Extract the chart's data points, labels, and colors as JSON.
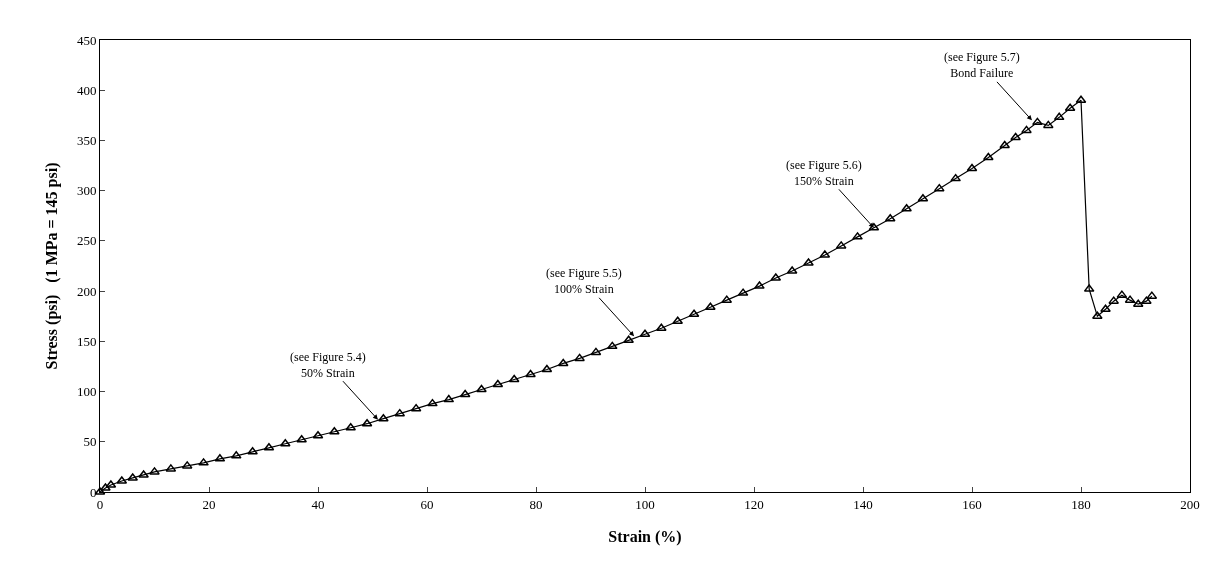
{
  "chart_data": {
    "type": "line",
    "xlabel": "Strain (%)",
    "ylabel": "Stress (psi)   (1 MPa = 145 psi)",
    "xlim": [
      0,
      200
    ],
    "xticks": [
      0,
      20,
      40,
      60,
      80,
      100,
      120,
      140,
      160,
      180,
      200
    ],
    "ylim": [
      0,
      450
    ],
    "yticks": [
      0,
      50,
      100,
      150,
      200,
      250,
      300,
      350,
      400,
      450
    ],
    "marker": "triangle",
    "line_style": "solid",
    "series": [
      {
        "color": "#000000",
        "x": [
          0,
          1,
          2,
          4,
          6,
          8,
          10,
          13,
          16,
          19,
          22,
          25,
          28,
          31,
          34,
          37,
          40,
          43,
          46,
          49,
          52,
          55,
          58,
          61,
          64,
          67,
          70,
          73,
          76,
          79,
          82,
          85,
          88,
          91,
          94,
          97,
          100,
          103,
          106,
          109,
          112,
          115,
          118,
          121,
          124,
          127,
          130,
          133,
          136,
          139,
          142,
          145,
          148,
          151,
          154,
          157,
          160,
          163,
          166,
          168,
          170,
          172,
          174,
          176,
          178,
          180,
          181.5,
          183,
          184.5,
          186,
          187.5,
          189,
          190.5,
          192,
          193
        ],
        "values": [
          0,
          4,
          7,
          11,
          14,
          17,
          20,
          23,
          26,
          29,
          33,
          36,
          40,
          44,
          48,
          52,
          56,
          60,
          64,
          68,
          73,
          78,
          83,
          88,
          92,
          97,
          102,
          107,
          112,
          117,
          122,
          128,
          133,
          139,
          145,
          151,
          157,
          163,
          170,
          177,
          184,
          191,
          198,
          205,
          213,
          220,
          228,
          236,
          245,
          254,
          263,
          272,
          282,
          292,
          302,
          312,
          322,
          333,
          345,
          353,
          360,
          368,
          365,
          373,
          382,
          390,
          202,
          175,
          182,
          190,
          196,
          191,
          187,
          190,
          195
        ]
      }
    ],
    "annotations": [
      {
        "text": "(see Figure 5.4)\n50% Strain",
        "x": 51,
        "y": 72
      },
      {
        "text": "(see Figure 5.5)\n100% Strain",
        "x": 98,
        "y": 155
      },
      {
        "text": "(see Figure 5.6)\n150% Strain",
        "x": 142,
        "y": 263
      },
      {
        "text": "(see Figure 5.7)\nBond Failure",
        "x": 171,
        "y": 370
      }
    ]
  }
}
